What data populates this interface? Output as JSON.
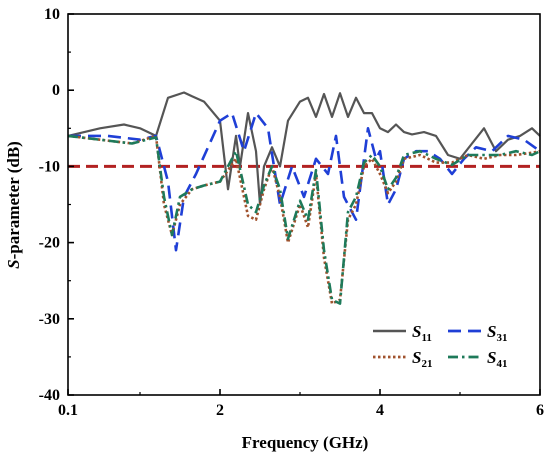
{
  "chart_data": {
    "type": "line",
    "xlabel": "Frequency (GHz)",
    "ylabel": "S-parameter (dB)",
    "ylabel_italic": "S",
    "ylabel_rest": "-parameter (dB)",
    "xlim": [
      0.1,
      6
    ],
    "ylim": [
      -40,
      10
    ],
    "x_ticks": [
      0.1,
      2,
      4,
      6
    ],
    "x_tick_labels": [
      "0.1",
      "2",
      "4",
      "6"
    ],
    "y_ticks": [
      10,
      0,
      -10,
      -20,
      -30,
      -40
    ],
    "y_tick_labels": [
      "10",
      "0",
      "-10",
      "-20",
      "-30",
      "-40"
    ],
    "grid": false,
    "legend_position": "bottom-right",
    "reference_line": {
      "y": -10,
      "color": "#b22222"
    },
    "series": [
      {
        "name": "S11",
        "label_main": "S",
        "label_sub": "11",
        "color": "#555555",
        "style": "solid",
        "x": [
          0.1,
          0.5,
          0.8,
          1.0,
          1.2,
          1.35,
          1.55,
          1.65,
          1.8,
          2.0,
          2.1,
          2.2,
          2.25,
          2.35,
          2.45,
          2.5,
          2.55,
          2.65,
          2.75,
          2.85,
          3.0,
          3.1,
          3.2,
          3.3,
          3.4,
          3.5,
          3.6,
          3.7,
          3.8,
          3.9,
          4.0,
          4.1,
          4.2,
          4.3,
          4.4,
          4.55,
          4.7,
          4.85,
          5.0,
          5.15,
          5.3,
          5.45,
          5.6,
          5.75,
          5.9,
          6.0
        ],
        "y": [
          -6,
          -5,
          -4.5,
          -5,
          -6,
          -1,
          -0.3,
          -0.8,
          -1.5,
          -4,
          -13,
          -6,
          -10,
          -3,
          -8,
          -15,
          -10,
          -7.5,
          -10,
          -4,
          -1.5,
          -1,
          -3.5,
          -0.5,
          -3.5,
          -0.4,
          -3.5,
          -1,
          -3,
          -3,
          -5,
          -5.5,
          -4.5,
          -5.5,
          -5.8,
          -5.5,
          -6,
          -8.5,
          -9,
          -7,
          -5,
          -8,
          -6.5,
          -6,
          -5,
          -6
        ]
      },
      {
        "name": "S31",
        "label_main": "S",
        "label_sub": "31",
        "color": "#1f3fd6",
        "style": "dashed",
        "x": [
          0.1,
          0.6,
          1.0,
          1.2,
          1.35,
          1.45,
          1.55,
          1.7,
          2.0,
          2.15,
          2.3,
          2.45,
          2.6,
          2.75,
          2.9,
          3.05,
          3.2,
          3.35,
          3.45,
          3.55,
          3.7,
          3.85,
          3.95,
          4.0,
          4.1,
          4.2,
          4.3,
          4.45,
          4.6,
          4.75,
          4.9,
          5.05,
          5.2,
          5.4,
          5.6,
          5.8,
          6.0
        ],
        "y": [
          -6,
          -6,
          -6.5,
          -6,
          -12,
          -21,
          -14,
          -11,
          -4,
          -3,
          -8,
          -3,
          -5,
          -15,
          -10,
          -14,
          -9,
          -11,
          -6,
          -14,
          -17,
          -5,
          -9,
          -8,
          -15,
          -13,
          -9,
          -8,
          -8,
          -9,
          -11,
          -9,
          -7.5,
          -8,
          -6,
          -6.5,
          -8
        ]
      },
      {
        "name": "S21",
        "label_main": "S",
        "label_sub": "21",
        "color": "#a0522d",
        "style": "dotted",
        "x": [
          0.1,
          0.5,
          0.9,
          1.2,
          1.3,
          1.4,
          1.5,
          1.65,
          1.8,
          2.0,
          2.2,
          2.35,
          2.45,
          2.55,
          2.65,
          2.75,
          2.85,
          3.0,
          3.1,
          3.2,
          3.3,
          3.4,
          3.5,
          3.6,
          3.7,
          3.8,
          3.9,
          4.0,
          4.1,
          4.2,
          4.3,
          4.5,
          4.7,
          4.9,
          5.1,
          5.3,
          5.5,
          5.7,
          5.9,
          6.0
        ],
        "y": [
          -6,
          -6.5,
          -7,
          -6,
          -15,
          -19,
          -15,
          -13,
          -12.5,
          -12,
          -9,
          -16.5,
          -17,
          -13,
          -10,
          -14,
          -20,
          -15,
          -18,
          -11,
          -22,
          -28,
          -27.5,
          -17,
          -15,
          -10,
          -9,
          -11,
          -13.5,
          -12,
          -9,
          -8.5,
          -9.5,
          -9.5,
          -8.5,
          -9,
          -8.5,
          -8.5,
          -8.2,
          -8
        ]
      },
      {
        "name": "S41",
        "label_main": "S",
        "label_sub": "41",
        "color": "#1e7a5a",
        "style": "dashdot",
        "x": [
          0.1,
          0.5,
          0.9,
          1.2,
          1.3,
          1.4,
          1.5,
          1.65,
          1.8,
          2.0,
          2.2,
          2.35,
          2.45,
          2.55,
          2.65,
          2.75,
          2.85,
          3.0,
          3.1,
          3.2,
          3.3,
          3.4,
          3.5,
          3.6,
          3.7,
          3.8,
          3.9,
          4.0,
          4.1,
          4.2,
          4.3,
          4.5,
          4.7,
          4.9,
          5.1,
          5.3,
          5.5,
          5.7,
          5.9,
          6.0
        ],
        "y": [
          -6,
          -6.5,
          -7,
          -6.2,
          -14,
          -19,
          -14,
          -13,
          -12.5,
          -12,
          -8,
          -15,
          -16,
          -12.5,
          -10,
          -13,
          -19.5,
          -14.5,
          -17,
          -10.5,
          -21,
          -27.5,
          -28,
          -16,
          -14,
          -9.5,
          -8.5,
          -10,
          -13,
          -11.5,
          -8.5,
          -8,
          -9,
          -9.8,
          -8.5,
          -8.5,
          -8.5,
          -8,
          -8.5,
          -8
        ]
      }
    ]
  }
}
